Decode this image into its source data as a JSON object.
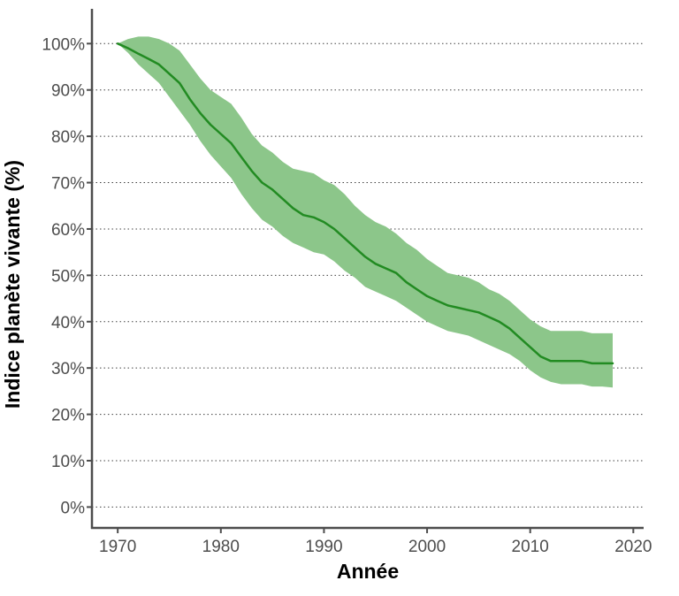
{
  "chart_data": {
    "type": "area",
    "xlabel": "Année",
    "ylabel": "Indice planète vivante (%)",
    "xlim": [
      1967.5,
      2021
    ],
    "ylim": [
      -4.5,
      107.5
    ],
    "x_ticks": [
      1970,
      1980,
      1990,
      2000,
      2010,
      2020
    ],
    "x_tick_labels": [
      "1970",
      "1980",
      "1990",
      "2000",
      "2010",
      "2020"
    ],
    "y_ticks": [
      0,
      10,
      20,
      30,
      40,
      50,
      60,
      70,
      80,
      90,
      100
    ],
    "y_tick_labels": [
      "0%",
      "10%",
      "20%",
      "30%",
      "40%",
      "50%",
      "60%",
      "70%",
      "80%",
      "90%",
      "100%"
    ],
    "grid": "horizontal dotted",
    "legend": "none",
    "colors": {
      "line": "#228b22",
      "band": "#8cc68a",
      "axis": "#4d4d4d"
    },
    "series": [
      {
        "x": [
          1970,
          1971,
          1972,
          1973,
          1974,
          1975,
          1976,
          1977,
          1978,
          1979,
          1980,
          1981,
          1982,
          1983,
          1984,
          1985,
          1986,
          1987,
          1988,
          1989,
          1990,
          1991,
          1992,
          1993,
          1994,
          1995,
          1996,
          1997,
          1998,
          1999,
          2000,
          2001,
          2002,
          2003,
          2004,
          2005,
          2006,
          2007,
          2008,
          2009,
          2010,
          2011,
          2012,
          2013,
          2014,
          2015,
          2016,
          2017,
          2018
        ],
        "values": [
          100,
          99,
          97.8,
          96.7,
          95.5,
          93.5,
          91.5,
          88,
          85,
          82.5,
          80.5,
          78.5,
          75.5,
          72.5,
          70,
          68.5,
          66.5,
          64.5,
          63,
          62.5,
          61.5,
          60,
          58,
          56,
          54,
          52.5,
          51.5,
          50.5,
          48.5,
          47,
          45.5,
          44.5,
          43.5,
          43,
          42.5,
          42,
          41,
          40,
          38.5,
          36.5,
          34.5,
          32.5,
          31.5,
          31.5,
          31.5,
          31.5,
          31,
          31,
          31
        ],
        "lower": [
          100,
          98,
          95.5,
          93.5,
          91.5,
          88.5,
          85.5,
          82.5,
          79,
          76,
          73.5,
          71,
          67.5,
          64.5,
          62,
          60.5,
          58.5,
          57,
          56,
          55,
          54.5,
          53,
          51,
          49.5,
          47.5,
          46.5,
          45.5,
          44.5,
          43,
          41.5,
          40,
          39,
          38,
          37.5,
          37,
          36,
          35,
          34,
          33,
          31.5,
          29.5,
          28,
          27,
          26.5,
          26.5,
          26.5,
          26,
          26,
          25.8
        ],
        "upper": [
          100,
          101,
          101.5,
          101.5,
          101,
          100,
          98.5,
          95.5,
          92.5,
          90,
          88.5,
          87,
          84,
          80.5,
          78,
          76.5,
          74.5,
          73,
          72.5,
          72,
          70.5,
          69.5,
          67.5,
          65,
          63,
          61.5,
          60.5,
          59,
          57,
          55.5,
          53.5,
          52,
          50.5,
          50,
          49.5,
          48.5,
          47,
          46,
          44.5,
          42.5,
          40.5,
          39,
          38,
          38,
          38,
          38,
          37.5,
          37.5,
          37.5
        ]
      }
    ]
  }
}
